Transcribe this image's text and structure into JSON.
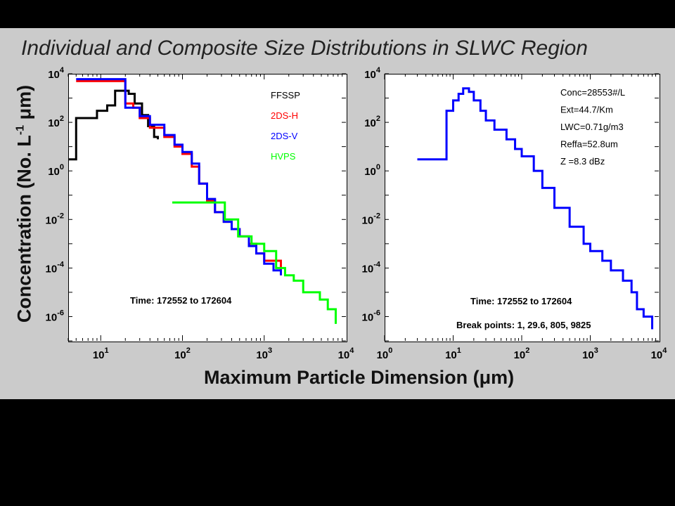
{
  "slide": {
    "title": "Individual and Composite Size Distributions in SLWC Region",
    "ylabel": "Concentration (No. L-1 μm)",
    "xlabel": "Maximum Particle Dimension (μm)"
  },
  "chart_data": [
    {
      "type": "line",
      "step": true,
      "xscale": "log",
      "yscale": "log",
      "xlim": [
        4,
        10000
      ],
      "ylim": [
        1e-07,
        10000
      ],
      "x_ticks": [
        "10^1",
        "10^2",
        "10^3",
        "10^4"
      ],
      "y_ticks": [
        "10^4",
        "10^2",
        "10^0",
        "10^-2",
        "10^-4",
        "10^-6"
      ],
      "legend_position": "top-right",
      "annotation": "Time: 172552 to 172604",
      "series": [
        {
          "name": "FFSSP",
          "color": "#000000",
          "x": [
            4,
            5,
            7,
            9,
            12,
            15,
            18,
            22,
            26,
            32,
            38,
            45,
            50
          ],
          "y": [
            3,
            150,
            150,
            300,
            500,
            2000,
            2000,
            1500,
            600,
            200,
            70,
            25,
            20
          ]
        },
        {
          "name": "2DS-H",
          "color": "#ff0000",
          "x": [
            5,
            15,
            20,
            25,
            30,
            40,
            60,
            80,
            100,
            130,
            160,
            200,
            250,
            320,
            400,
            500,
            650,
            800,
            1000,
            1300,
            1600
          ],
          "y": [
            5000,
            5000,
            600,
            400,
            150,
            60,
            25,
            10,
            5,
            1.5,
            0.3,
            0.06,
            0.02,
            0.008,
            0.004,
            0.002,
            0.001,
            0.0004,
            0.0002,
            0.0002,
            5e-05
          ]
        },
        {
          "name": "2DS-V",
          "color": "#0000ff",
          "x": [
            5,
            15,
            20,
            25,
            30,
            40,
            60,
            80,
            100,
            130,
            160,
            200,
            250,
            320,
            400,
            500,
            650,
            800,
            1000,
            1300,
            1600
          ],
          "y": [
            6000,
            6000,
            400,
            400,
            180,
            80,
            30,
            12,
            6,
            2,
            0.3,
            0.07,
            0.02,
            0.008,
            0.004,
            0.002,
            0.0008,
            0.0004,
            0.00015,
            8e-05,
            5e-05
          ]
        },
        {
          "name": "HVPS",
          "color": "#00ff00",
          "x": [
            75,
            230,
            330,
            480,
            700,
            1000,
            1400,
            1800,
            2300,
            3000,
            3800,
            4800,
            6000,
            7500
          ],
          "y": [
            0.05,
            0.05,
            0.01,
            0.002,
            0.001,
            0.0005,
            0.0001,
            5e-05,
            3e-05,
            1e-05,
            1e-05,
            5e-06,
            2e-06,
            5e-07
          ]
        }
      ]
    },
    {
      "type": "line",
      "step": true,
      "xscale": "log",
      "yscale": "log",
      "xlim": [
        1,
        10000
      ],
      "ylim": [
        1e-07,
        10000
      ],
      "x_ticks": [
        "10^0",
        "10^1",
        "10^2",
        "10^3",
        "10^4"
      ],
      "y_ticks": [
        "10^4",
        "10^2",
        "10^0",
        "10^-2",
        "10^-4",
        "10^-6"
      ],
      "info_lines": [
        "Conc=28553#/L",
        "Ext=44.7/Km",
        "LWC=0.71g/m3",
        "Reffa=52.8um",
        "Z   =8.3 dBz"
      ],
      "annotations": [
        "Time: 172552 to 172604",
        "Break points: 1,    29.6,  805,  9825"
      ],
      "series": [
        {
          "color": "#0000ff",
          "x": [
            3,
            6,
            8,
            10,
            12,
            14,
            17,
            20,
            25,
            30,
            40,
            60,
            80,
            100,
            150,
            200,
            300,
            500,
            800,
            1000,
            1500,
            2000,
            3000,
            4000,
            4800,
            5500,
            6000,
            8000
          ],
          "y": [
            3,
            3,
            300,
            800,
            1500,
            2500,
            1800,
            800,
            300,
            120,
            50,
            20,
            8,
            4,
            1,
            0.2,
            0.03,
            0.005,
            0.001,
            0.0005,
            0.0002,
            8e-05,
            3e-05,
            1e-05,
            2e-06,
            2e-06,
            1e-06,
            3e-07
          ]
        }
      ]
    }
  ]
}
